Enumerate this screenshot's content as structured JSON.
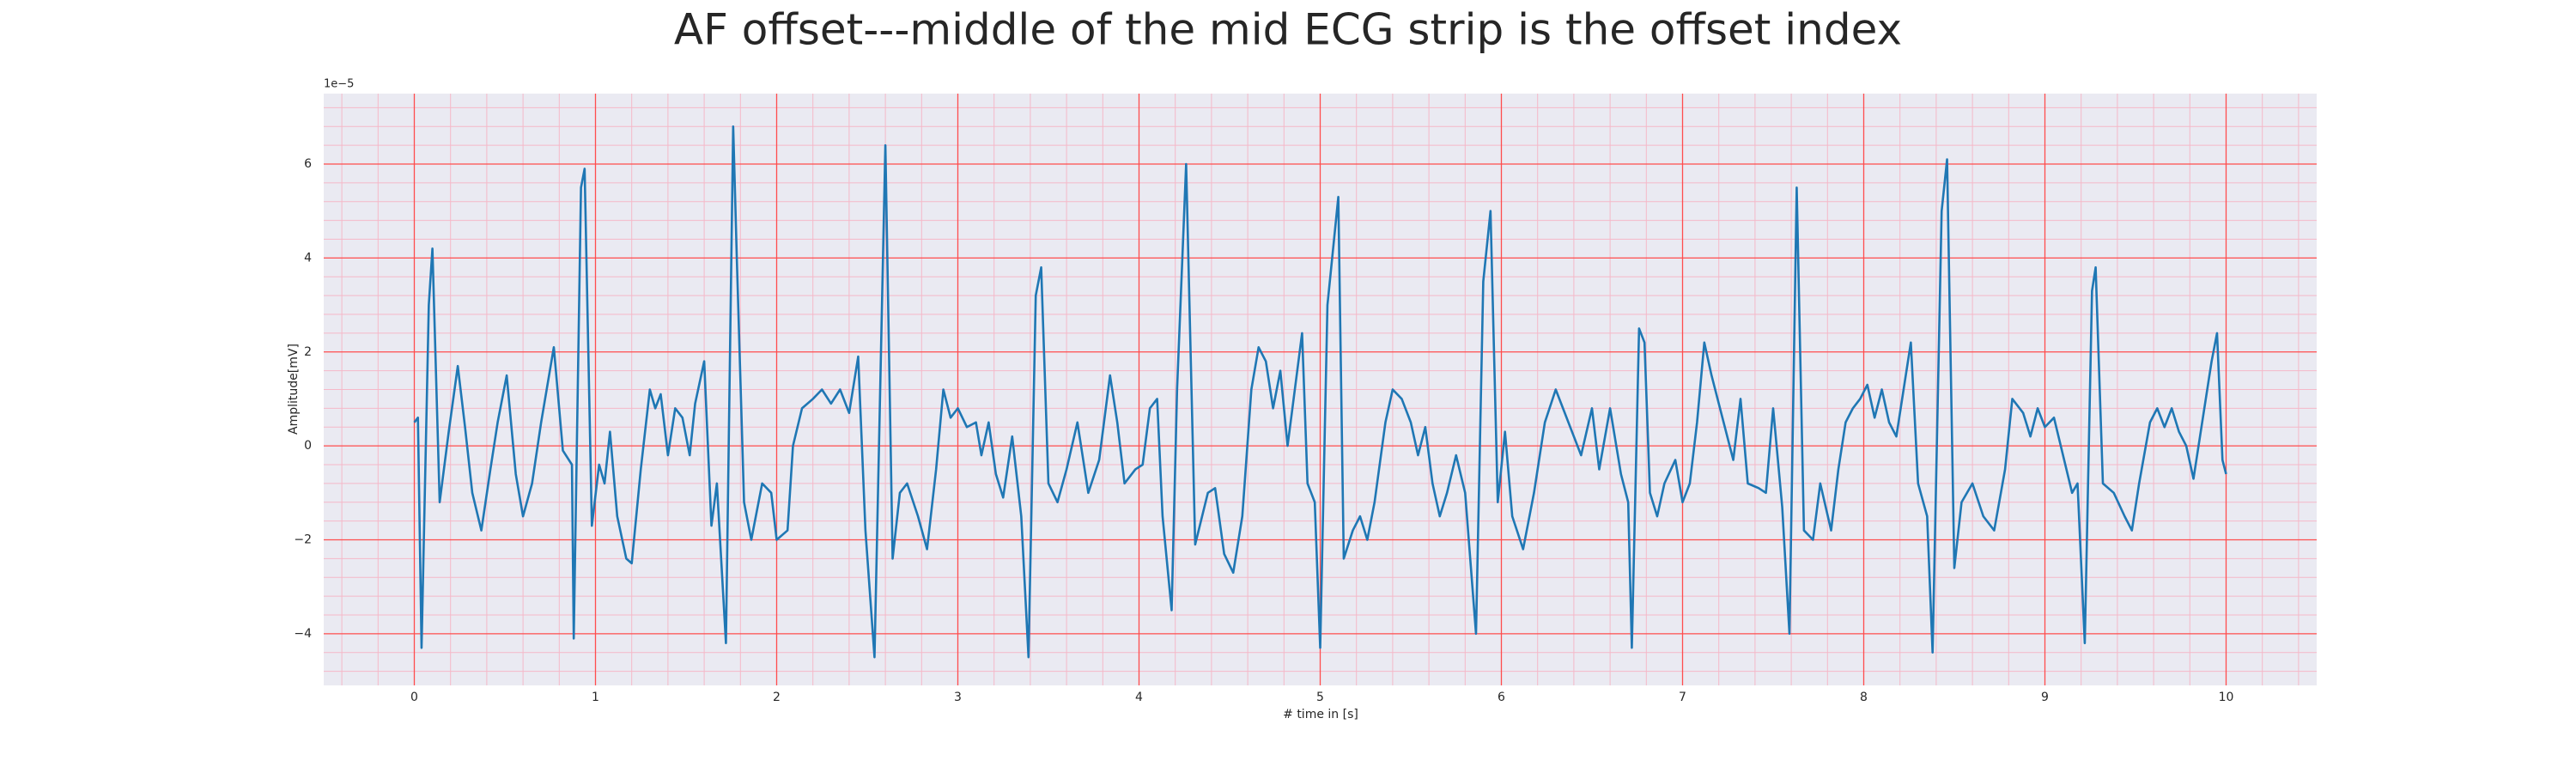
{
  "chart_data": {
    "type": "line",
    "title": "AF offset---middle of the mid ECG strip is the offset index",
    "xlabel": "# time in [s]",
    "ylabel": "Amplitude[mV]",
    "offset_label": "1e−5",
    "color": "#1f77b4",
    "background": "#eaeaf2",
    "grid": true,
    "grid_color": "#ff4d4d",
    "minor_grid_color": "#f5b8c8",
    "xlim": [
      -0.5,
      10.5
    ],
    "ylim": [
      -5.1,
      7.5
    ],
    "xticks": [
      0,
      1,
      2,
      3,
      4,
      5,
      6,
      7,
      8,
      9,
      10
    ],
    "yticks": [
      {
        "value": -4,
        "label": "−4"
      },
      {
        "value": -2,
        "label": "−2"
      },
      0,
      2,
      4,
      6
    ],
    "xminorticks": [
      -0.4,
      -0.2,
      0.2,
      0.4,
      0.6,
      0.8,
      1.2,
      1.4,
      1.6,
      1.8,
      2.2,
      2.4,
      2.6,
      2.8,
      3.2,
      3.4,
      3.6,
      3.8,
      4.2,
      4.4,
      4.6,
      4.8,
      5.2,
      5.4,
      5.6,
      5.8,
      6.2,
      6.4,
      6.6,
      6.8,
      7.2,
      7.4,
      7.6,
      7.8,
      8.2,
      8.4,
      8.6,
      8.8,
      9.2,
      9.4,
      9.6,
      9.8,
      10.2,
      10.4
    ],
    "yminorticks": [
      -4.8,
      -4.4,
      -3.6,
      -3.2,
      -2.8,
      -2.4,
      -1.6,
      -1.2,
      -0.8,
      -0.4,
      0.4,
      0.8,
      1.2,
      1.6,
      2.4,
      2.8,
      3.2,
      3.6,
      4.4,
      4.8,
      5.2,
      5.6,
      6.4,
      6.8,
      7.2
    ],
    "x": [
      0.0,
      0.02,
      0.04,
      0.08,
      0.1,
      0.14,
      0.19,
      0.24,
      0.28,
      0.32,
      0.37,
      0.42,
      0.46,
      0.51,
      0.56,
      0.6,
      0.65,
      0.7,
      0.77,
      0.82,
      0.87,
      0.88,
      0.92,
      0.94,
      0.98,
      1.02,
      1.05,
      1.08,
      1.12,
      1.17,
      1.2,
      1.25,
      1.3,
      1.33,
      1.36,
      1.4,
      1.44,
      1.48,
      1.52,
      1.55,
      1.6,
      1.64,
      1.67,
      1.72,
      1.76,
      1.78,
      1.82,
      1.86,
      1.92,
      1.97,
      2.0,
      2.06,
      2.09,
      2.14,
      2.2,
      2.25,
      2.3,
      2.35,
      2.4,
      2.45,
      2.49,
      2.54,
      2.6,
      2.64,
      2.68,
      2.72,
      2.78,
      2.83,
      2.88,
      2.92,
      2.96,
      3.0,
      3.05,
      3.1,
      3.13,
      3.17,
      3.21,
      3.25,
      3.3,
      3.35,
      3.39,
      3.43,
      3.46,
      3.5,
      3.55,
      3.6,
      3.66,
      3.72,
      3.78,
      3.84,
      3.88,
      3.92,
      3.98,
      4.02,
      4.06,
      4.1,
      4.13,
      4.18,
      4.21,
      4.26,
      4.31,
      4.38,
      4.42,
      4.47,
      4.52,
      4.57,
      4.62,
      4.66,
      4.7,
      4.74,
      4.78,
      4.82,
      4.86,
      4.9,
      4.93,
      4.97,
      5.0,
      5.04,
      5.1,
      5.13,
      5.18,
      5.22,
      5.26,
      5.3,
      5.36,
      5.4,
      5.45,
      5.5,
      5.54,
      5.58,
      5.62,
      5.66,
      5.7,
      5.75,
      5.8,
      5.86,
      5.9,
      5.94,
      5.98,
      6.02,
      6.06,
      6.12,
      6.18,
      6.24,
      6.3,
      6.34,
      6.4,
      6.44,
      6.5,
      6.54,
      6.6,
      6.66,
      6.7,
      6.72,
      6.76,
      6.79,
      6.82,
      6.86,
      6.9,
      6.96,
      7.0,
      7.04,
      7.08,
      7.12,
      7.16,
      7.22,
      7.28,
      7.32,
      7.36,
      7.42,
      7.46,
      7.5,
      7.55,
      7.59,
      7.63,
      7.67,
      7.72,
      7.76,
      7.82,
      7.86,
      7.9,
      7.94,
      7.98,
      8.02,
      8.06,
      8.1,
      8.14,
      8.18,
      8.22,
      8.26,
      8.3,
      8.35,
      8.38,
      8.43,
      8.46,
      8.5,
      8.54,
      8.6,
      8.66,
      8.72,
      8.78,
      8.82,
      8.88,
      8.92,
      8.96,
      9.0,
      9.05,
      9.1,
      9.15,
      9.18,
      9.22,
      9.26,
      9.28,
      9.32,
      9.38,
      9.44,
      9.48,
      9.52,
      9.58,
      9.62,
      9.66,
      9.7,
      9.74,
      9.78,
      9.82,
      9.86,
      9.92,
      9.95,
      9.98,
      10.0
    ],
    "values": [
      0.5,
      0.6,
      -4.3,
      3.0,
      4.2,
      -1.2,
      0.3,
      1.7,
      0.4,
      -1.0,
      -1.8,
      -0.5,
      0.5,
      1.5,
      -0.6,
      -1.5,
      -0.8,
      0.5,
      2.1,
      -0.1,
      -0.4,
      -4.1,
      5.5,
      5.9,
      -1.7,
      -0.4,
      -0.8,
      0.3,
      -1.5,
      -2.4,
      -2.5,
      -0.5,
      1.2,
      0.8,
      1.1,
      -0.2,
      0.8,
      0.6,
      -0.2,
      0.9,
      1.8,
      -1.7,
      -0.8,
      -4.2,
      6.8,
      4.0,
      -1.2,
      -2.0,
      -0.8,
      -1.0,
      -2.0,
      -1.8,
      0.0,
      0.8,
      1.0,
      1.2,
      0.9,
      1.2,
      0.7,
      1.9,
      -1.8,
      -4.5,
      6.4,
      -2.4,
      -1.0,
      -0.8,
      -1.5,
      -2.2,
      -0.5,
      1.2,
      0.6,
      0.8,
      0.4,
      0.5,
      -0.2,
      0.5,
      -0.6,
      -1.1,
      0.2,
      -1.5,
      -4.5,
      3.2,
      3.8,
      -0.8,
      -1.2,
      -0.5,
      0.5,
      -1.0,
      -0.3,
      1.5,
      0.5,
      -0.8,
      -0.5,
      -0.4,
      0.8,
      1.0,
      -1.5,
      -3.5,
      1.2,
      6.0,
      -2.1,
      -1.0,
      -0.9,
      -2.3,
      -2.7,
      -1.5,
      1.2,
      2.1,
      1.8,
      0.8,
      1.6,
      0.0,
      1.2,
      2.4,
      -0.8,
      -1.2,
      -4.3,
      3.0,
      5.3,
      -2.4,
      -1.8,
      -1.5,
      -2.0,
      -1.2,
      0.5,
      1.2,
      1.0,
      0.5,
      -0.2,
      0.4,
      -0.8,
      -1.5,
      -1.0,
      -0.2,
      -1.0,
      -4.0,
      3.5,
      5.0,
      -1.2,
      0.3,
      -1.5,
      -2.2,
      -1.0,
      0.5,
      1.2,
      0.8,
      0.2,
      -0.2,
      0.8,
      -0.5,
      0.8,
      -0.6,
      -1.2,
      -4.3,
      2.5,
      2.2,
      -1.0,
      -1.5,
      -0.8,
      -0.3,
      -1.2,
      -0.8,
      0.5,
      2.2,
      1.5,
      0.6,
      -0.3,
      1.0,
      -0.8,
      -0.9,
      -1.0,
      0.8,
      -1.3,
      -4.0,
      5.5,
      -1.8,
      -2.0,
      -0.8,
      -1.8,
      -0.5,
      0.5,
      0.8,
      1.0,
      1.3,
      0.6,
      1.2,
      0.5,
      0.2,
      1.2,
      2.2,
      -0.8,
      -1.5,
      -4.4,
      5.0,
      6.1,
      -2.6,
      -1.2,
      -0.8,
      -1.5,
      -1.8,
      -0.5,
      1.0,
      0.7,
      0.2,
      0.8,
      0.4,
      0.6,
      -0.2,
      -1.0,
      -0.8,
      -4.2,
      3.3,
      3.8,
      -0.8,
      -1.0,
      -1.5,
      -1.8,
      -0.8,
      0.5,
      0.8,
      0.4,
      0.8,
      0.3,
      0.0,
      -0.7,
      0.3,
      1.8,
      2.4,
      -0.3,
      -0.6
    ]
  }
}
